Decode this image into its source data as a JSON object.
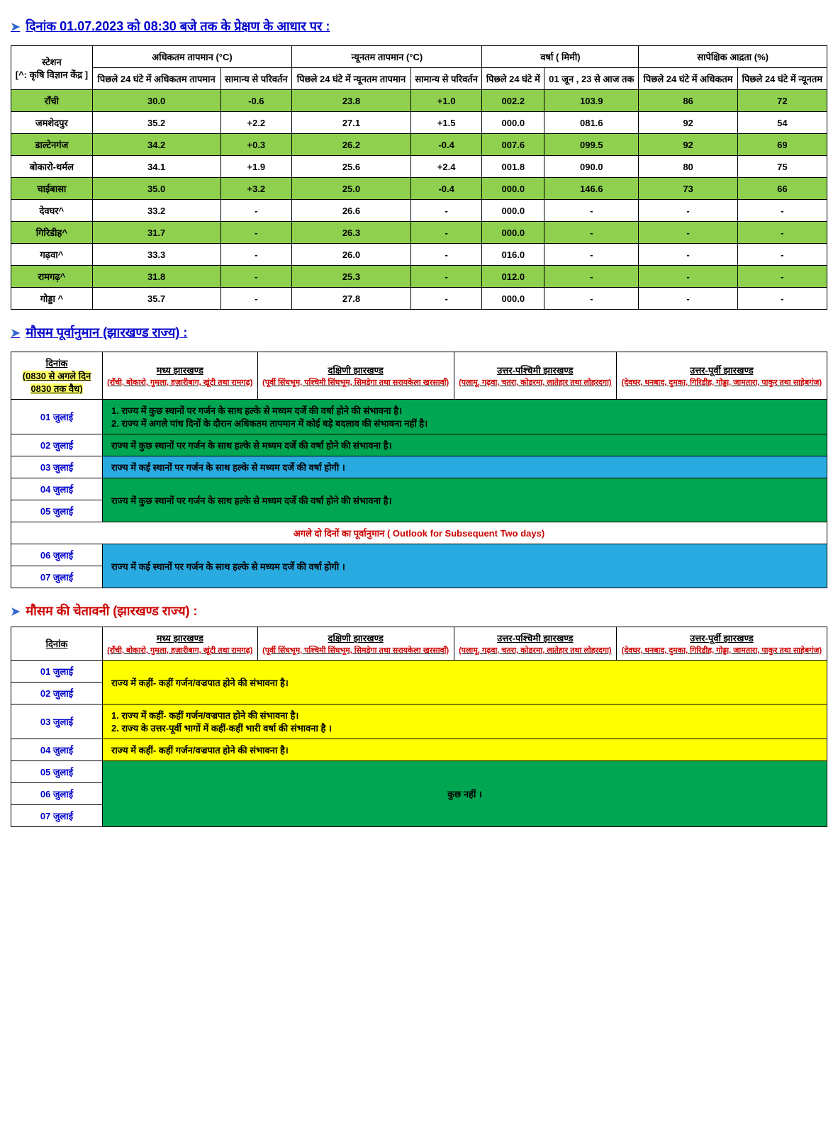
{
  "title1": "दिनांक  01.07.2023  को  08:30  बजे तक के प्रेक्षण के आधार पर :",
  "obs": {
    "h_station": "स्टेशन",
    "h_station_sub": "[^: कृषि विज्ञान केंद्र ]",
    "h_max": "अधिकतम तापमान (°C)",
    "h_min": "न्यूनतम तापमान (°C)",
    "h_rain": "वर्षा ( मिमी)",
    "h_rh": "सापेक्षिक आद्रता (%)",
    "h_max24": "पिछले 24 घंटे में अधिकतम तापमान",
    "h_maxdev": "सामान्य से परिवर्तन",
    "h_min24": "पिछले 24 घंटे में न्यूनतम तापमान",
    "h_mindev": "सामान्य से परिवर्तन",
    "h_rain24": "पिछले 24 घंटे में",
    "h_rainseason": "01  जून , 23 से आज तक",
    "h_rhmax": "पिछले 24 घंटे में अधिकतम",
    "h_rhmin": "पिछले 24 घंटे में न्यूनतम",
    "rows": [
      {
        "s": "राँची",
        "v": [
          "30.0",
          "-0.6",
          "23.8",
          "+1.0",
          "002.2",
          "103.9",
          "86",
          "72"
        ],
        "g": true
      },
      {
        "s": "जमशेदपुर",
        "v": [
          "35.2",
          "+2.2",
          "27.1",
          "+1.5",
          "000.0",
          "081.6",
          "92",
          "54"
        ],
        "g": false
      },
      {
        "s": "डाल्टेनगंज",
        "v": [
          "34.2",
          "+0.3",
          "26.2",
          "-0.4",
          "007.6",
          "099.5",
          "92",
          "69"
        ],
        "g": true
      },
      {
        "s": "बोकारो-थर्मल",
        "v": [
          "34.1",
          "+1.9",
          "25.6",
          "+2.4",
          "001.8",
          "090.0",
          "80",
          "75"
        ],
        "g": false
      },
      {
        "s": "चाईबासा",
        "v": [
          "35.0",
          "+3.2",
          "25.0",
          "-0.4",
          "000.0",
          "146.6",
          "73",
          "66"
        ],
        "g": true
      },
      {
        "s": "देवघर^",
        "v": [
          "33.2",
          "-",
          "26.6",
          "-",
          "000.0",
          "-",
          "-",
          "-"
        ],
        "g": false
      },
      {
        "s": "गिरिडीह^",
        "v": [
          "31.7",
          "-",
          "26.3",
          "-",
          "000.0",
          "-",
          "-",
          "-"
        ],
        "g": true
      },
      {
        "s": "गढ़वा^",
        "v": [
          "33.3",
          "-",
          "26.0",
          "-",
          "016.0",
          "-",
          "-",
          "-"
        ],
        "g": false
      },
      {
        "s": "रामगढ़^",
        "v": [
          "31.8",
          "-",
          "25.3",
          "-",
          "012.0",
          "-",
          "-",
          "-"
        ],
        "g": true
      },
      {
        "s": "गोड्डा ^",
        "v": [
          "35.7",
          "-",
          "27.8",
          "-",
          "000.0",
          "-",
          "-",
          "-"
        ],
        "g": false
      }
    ]
  },
  "title2": "मौसम पूर्वानुमान  (झारखण्ड राज्य)  :",
  "fc": {
    "h_date": "दिनांक",
    "h_date_sub": "(0830 से अगले दिन 0830 तक वैध)",
    "r1": "मध्य झारखण्ड",
    "r1s": "(राँची, बोकारो, गुमला, हज़ारीबाग, खूंटी तथा रामगढ़)",
    "r2": "दक्षिणी  झारखण्ड",
    "r2s": "(पूर्वी सिंघभूम, पश्चिमी सिंघभूम, सिमडेगा तथा सरायकेला खरसावाँ)",
    "r3": "उत्तर-पश्चिमी झारखण्ड",
    "r3s": "(पलामू, गढ़वा, चतरा, कोडरमा, लातेहार तथा लोहरदगा)",
    "r4": "उत्तर-पूर्वी झारखण्ड",
    "r4s": "(देवघर, धनबाद, दुमका, गिरिडीह, गोड्डा, जामतारा, पाकुर तथा साहेबगंज)",
    "d1": "01  जुलाई",
    "d2": "02  जुलाई",
    "d3": "03  जुलाई",
    "d4": "04  जुलाई",
    "d5": "05  जुलाई",
    "d6": "06  जुलाई",
    "d7": "07  जुलाई",
    "t1a": "1.   राज्य में कुछ स्थानों पर गर्जन के साथ  हल्के से मध्यम दर्जे की वर्षा होने की संभावना  है।",
    "t1b": "2.   राज्य में अगले पांच दिनों के दौरान अधिकतम तापमान में  कोई बड़े बदलाव की संभावना नहीं है।",
    "t2": "राज्य में कुछ स्थानों पर गर्जन के साथ  हल्के से मध्यम दर्जे की वर्षा होने की संभावना  है।",
    "t3": "राज्य में कई स्थानों पर गर्जन के साथ  हल्के से मध्यम दर्जे की वर्षा होगी  ।",
    "t45": "राज्य में कुछ स्थानों पर गर्जन के साथ  हल्के से मध्यम दर्जे की वर्षा होने की संभावना  है।",
    "outlook": "अगले  दो  दिनों  का  पूर्वानुमान  ( Outlook  for  Subsequent  Two  days)",
    "t67": "राज्य में कई स्थानों पर गर्जन के साथ  हल्के से मध्यम दर्जे की वर्षा होगी  ।"
  },
  "title3": "मौसम  की  चेतावनी (झारखण्ड राज्य)  :",
  "warn": {
    "h_date": "दिनांक",
    "w12": "राज्य  में  कहीं- कहीं  गर्जन/वज्रपात  होने  की संभावना  है।",
    "w3a": "1.  राज्य  में  कहीं- कहीं  गर्जन/वज्रपात  होने  की संभावना  है।",
    "w3b": "2.  राज्य के उत्तर-पूर्वी भागों में कहीं-कहीं भारी वर्षा की संभावना है ।",
    "w4": "राज्य  में  कहीं- कहीं  गर्जन/वज्रपात  होने  की संभावना  है।",
    "w567": "कुछ नहीं ।"
  }
}
